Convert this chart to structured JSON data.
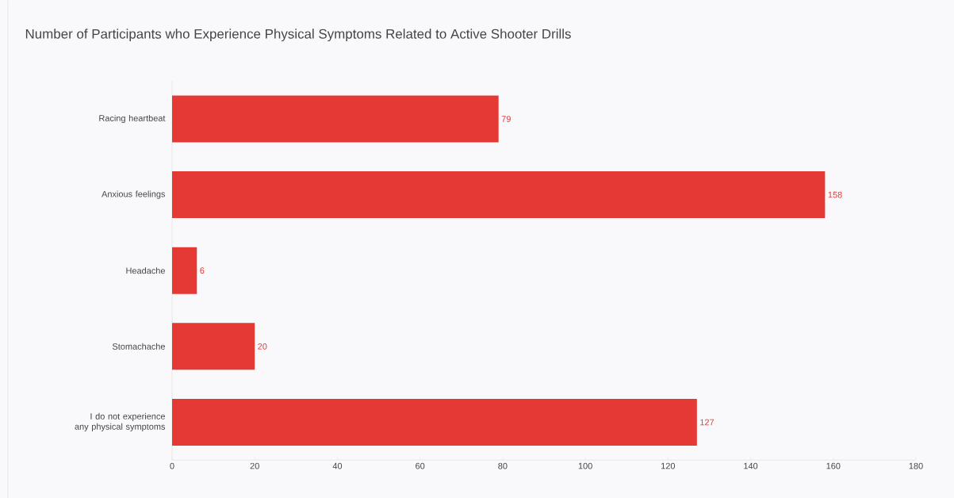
{
  "chart_data": {
    "type": "bar",
    "orientation": "horizontal",
    "title": "Number of Participants who Experience Physical Symptoms Related to Active Shooter Drills",
    "categories": [
      "Racing heartbeat",
      "Anxious feelings",
      "Headache",
      "Stomachache",
      "I do not experience any physical symptoms"
    ],
    "values": [
      79,
      158,
      6,
      20,
      127
    ],
    "color": "#e53935",
    "data_labels": true,
    "xlim": [
      0,
      180
    ],
    "xticks": [
      0,
      20,
      40,
      60,
      80,
      100,
      120,
      140,
      160,
      180
    ],
    "grid": false
  }
}
